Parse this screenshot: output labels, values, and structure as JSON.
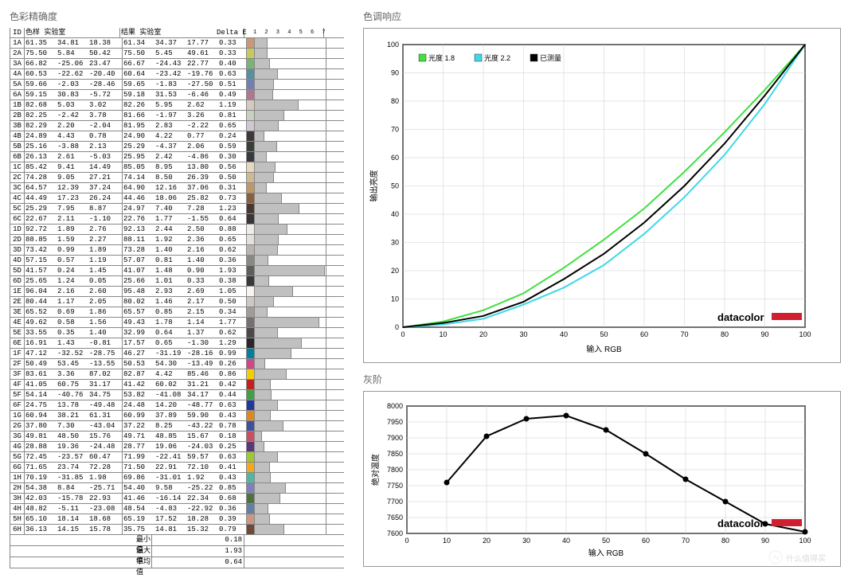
{
  "sections": {
    "accuracy": "色彩精确度",
    "tone": "色调响应",
    "gray": "灰阶"
  },
  "table": {
    "headers": {
      "id": "ID",
      "sample": "色样 实验室",
      "result": "结果 实验室",
      "delta": "Delta E",
      "bar": "1   2   3   4   5   6   7"
    },
    "summary": {
      "min_l": "最小值",
      "min_v": "0.18",
      "max_l": "最大值",
      "max_v": "1.93",
      "avg_l": "平均值",
      "avg_v": "0.64"
    },
    "rows": [
      {
        "id": "1A",
        "v": [
          61.35,
          34.81,
          18.38,
          61.34,
          34.37,
          17.77
        ],
        "de": 0.33,
        "sw": "#c89878"
      },
      {
        "id": "2A",
        "v": [
          75.5,
          5.84,
          50.42,
          75.5,
          5.45,
          49.61
        ],
        "de": 0.33,
        "sw": "#c8c860"
      },
      {
        "id": "3A",
        "v": [
          66.82,
          -25.06,
          23.47,
          66.67,
          -24.43,
          22.77
        ],
        "de": 0.4,
        "sw": "#78b478"
      },
      {
        "id": "4A",
        "v": [
          60.53,
          -22.62,
          -20.4,
          60.64,
          -23.42,
          -19.76
        ],
        "de": 0.63,
        "sw": "#5890a0"
      },
      {
        "id": "5A",
        "v": [
          59.66,
          -2.03,
          -28.46,
          59.65,
          -1.83,
          -27.5
        ],
        "de": 0.51,
        "sw": "#7080b0"
      },
      {
        "id": "6A",
        "v": [
          59.15,
          30.83,
          -5.72,
          59.18,
          31.53,
          -6.46
        ],
        "de": 0.49,
        "sw": "#b07890"
      },
      {
        "id": "1B",
        "v": [
          82.68,
          5.03,
          3.02,
          82.26,
          5.95,
          2.62
        ],
        "de": 1.19,
        "sw": "#d8c8c0"
      },
      {
        "id": "2B",
        "v": [
          82.25,
          -2.42,
          3.78,
          81.66,
          -1.97,
          3.26
        ],
        "de": 0.81,
        "sw": "#c8d0c0"
      },
      {
        "id": "3B",
        "v": [
          82.29,
          2.2,
          -2.04,
          81.95,
          2.83,
          -2.22
        ],
        "de": 0.65,
        "sw": "#d0c8d0"
      },
      {
        "id": "4B",
        "v": [
          24.89,
          4.43,
          0.78,
          24.9,
          4.22,
          0.77
        ],
        "de": 0.24,
        "sw": "#403838"
      },
      {
        "id": "5B",
        "v": [
          25.16,
          -3.88,
          2.13,
          25.29,
          -4.37,
          2.06
        ],
        "de": 0.59,
        "sw": "#384038"
      },
      {
        "id": "6B",
        "v": [
          26.13,
          2.61,
          -5.03,
          25.95,
          2.42,
          -4.86
        ],
        "de": 0.3,
        "sw": "#383840"
      },
      {
        "id": "1C",
        "v": [
          85.42,
          9.41,
          14.49,
          85.05,
          8.95,
          13.8
        ],
        "de": 0.56,
        "sw": "#e8d8c0"
      },
      {
        "id": "2C",
        "v": [
          74.28,
          9.05,
          27.21,
          74.14,
          8.5,
          26.39
        ],
        "de": 0.5,
        "sw": "#d0b890"
      },
      {
        "id": "3C",
        "v": [
          64.57,
          12.39,
          37.24,
          64.9,
          12.16,
          37.06
        ],
        "de": 0.31,
        "sw": "#c09868"
      },
      {
        "id": "4C",
        "v": [
          44.49,
          17.23,
          26.24,
          44.46,
          18.06,
          25.82
        ],
        "de": 0.73,
        "sw": "#886040"
      },
      {
        "id": "5C",
        "v": [
          25.29,
          7.95,
          8.87,
          24.97,
          7.4,
          7.28
        ],
        "de": 1.23,
        "sw": "#483830"
      },
      {
        "id": "6C",
        "v": [
          22.67,
          2.11,
          -1.1,
          22.76,
          1.77,
          -1.55
        ],
        "de": 0.64,
        "sw": "#383438"
      },
      {
        "id": "1D",
        "v": [
          92.72,
          1.89,
          2.76,
          92.13,
          2.44,
          2.5
        ],
        "de": 0.88,
        "sw": "#f0ece8"
      },
      {
        "id": "2D",
        "v": [
          88.85,
          1.59,
          2.27,
          88.11,
          1.92,
          2.36
        ],
        "de": 0.65,
        "sw": "#e4e0dc"
      },
      {
        "id": "3D",
        "v": [
          73.42,
          0.99,
          1.89,
          73.28,
          1.4,
          2.16
        ],
        "de": 0.62,
        "sw": "#b8b4b0"
      },
      {
        "id": "4D",
        "v": [
          57.15,
          0.57,
          1.19,
          57.07,
          0.81,
          1.4
        ],
        "de": 0.36,
        "sw": "#888884"
      },
      {
        "id": "5D",
        "v": [
          41.57,
          0.24,
          1.45,
          41.07,
          1.48,
          0.9
        ],
        "de": 1.93,
        "sw": "#605c58"
      },
      {
        "id": "6D",
        "v": [
          25.65,
          1.24,
          0.05,
          25.66,
          1.01,
          0.33
        ],
        "de": 0.38,
        "sw": "#383838"
      },
      {
        "id": "1E",
        "v": [
          96.04,
          2.16,
          2.6,
          95.48,
          2.93,
          2.69
        ],
        "de": 1.05,
        "sw": "#f8f4f0"
      },
      {
        "id": "2E",
        "v": [
          80.44,
          1.17,
          2.05,
          80.02,
          1.46,
          2.17
        ],
        "de": 0.5,
        "sw": "#ccc8c4"
      },
      {
        "id": "3E",
        "v": [
          65.52,
          0.69,
          1.86,
          65.57,
          0.85,
          2.15
        ],
        "de": 0.34,
        "sw": "#a09c98"
      },
      {
        "id": "4E",
        "v": [
          49.62,
          0.58,
          1.56,
          49.43,
          1.78,
          1.14
        ],
        "de": 1.77,
        "sw": "#747070"
      },
      {
        "id": "5E",
        "v": [
          33.55,
          0.35,
          1.4,
          32.99,
          0.64,
          1.37
        ],
        "de": 0.62,
        "sw": "#4c4848"
      },
      {
        "id": "6E",
        "v": [
          16.91,
          1.43,
          -0.81,
          17.57,
          0.65,
          -1.3
        ],
        "de": 1.29,
        "sw": "#282828"
      },
      {
        "id": "1F",
        "v": [
          47.12,
          -32.52,
          -28.75,
          46.27,
          -31.19,
          -28.16
        ],
        "de": 0.99,
        "sw": "#0080a0"
      },
      {
        "id": "2F",
        "v": [
          50.49,
          53.45,
          -13.55,
          50.53,
          54.3,
          -13.49
        ],
        "de": 0.26,
        "sw": "#d04888"
      },
      {
        "id": "3F",
        "v": [
          83.61,
          3.36,
          87.02,
          82.87,
          4.42,
          85.46
        ],
        "de": 0.86,
        "sw": "#f0d000"
      },
      {
        "id": "4F",
        "v": [
          41.05,
          60.75,
          31.17,
          41.42,
          60.02,
          31.21
        ],
        "de": 0.42,
        "sw": "#c02020"
      },
      {
        "id": "5F",
        "v": [
          54.14,
          -40.76,
          34.75,
          53.82,
          -41.08,
          34.17
        ],
        "de": 0.44,
        "sw": "#40a048"
      },
      {
        "id": "6F",
        "v": [
          24.75,
          13.78,
          -49.48,
          24.48,
          14.2,
          -48.77
        ],
        "de": 0.63,
        "sw": "#2038a0"
      },
      {
        "id": "1G",
        "v": [
          60.94,
          38.21,
          61.31,
          60.99,
          37.89,
          59.9
        ],
        "de": 0.43,
        "sw": "#e08820"
      },
      {
        "id": "2G",
        "v": [
          37.8,
          7.3,
          -43.04,
          37.22,
          8.25,
          -43.22
        ],
        "de": 0.78,
        "sw": "#4050a0"
      },
      {
        "id": "3G",
        "v": [
          49.81,
          48.5,
          15.76,
          49.71,
          48.85,
          15.67
        ],
        "de": 0.18,
        "sw": "#c85060"
      },
      {
        "id": "4G",
        "v": [
          28.88,
          19.36,
          -24.48,
          28.77,
          19.06,
          -24.03
        ],
        "de": 0.25,
        "sw": "#583878"
      },
      {
        "id": "5G",
        "v": [
          72.45,
          -23.57,
          60.47,
          71.99,
          -22.41,
          59.57
        ],
        "de": 0.63,
        "sw": "#a0c830"
      },
      {
        "id": "6G",
        "v": [
          71.65,
          23.74,
          72.28,
          71.5,
          22.91,
          72.1
        ],
        "de": 0.41,
        "sw": "#f0a820"
      },
      {
        "id": "1H",
        "v": [
          70.19,
          -31.85,
          1.98,
          69.86,
          -31.01,
          1.92
        ],
        "de": 0.43,
        "sw": "#50b8a0"
      },
      {
        "id": "2H",
        "v": [
          54.38,
          8.84,
          -25.71,
          54.4,
          9.58,
          -25.22
        ],
        "de": 0.85,
        "sw": "#8080b8"
      },
      {
        "id": "3H",
        "v": [
          42.03,
          -15.78,
          22.93,
          41.46,
          -16.14,
          22.34
        ],
        "de": 0.68,
        "sw": "#507040"
      },
      {
        "id": "4H",
        "v": [
          48.82,
          -5.11,
          -23.08,
          48.54,
          -4.83,
          -22.92
        ],
        "de": 0.36,
        "sw": "#6080a8"
      },
      {
        "id": "5H",
        "v": [
          65.1,
          18.14,
          18.68,
          65.19,
          17.52,
          18.28
        ],
        "de": 0.39,
        "sw": "#c89880"
      },
      {
        "id": "6H",
        "v": [
          36.13,
          14.15,
          15.78,
          35.75,
          14.81,
          15.32
        ],
        "de": 0.79,
        "sw": "#704838"
      }
    ]
  },
  "tone_chart": {
    "xlabel": "输入 RGB",
    "ylabel": "输出亮度",
    "xlim": [
      0,
      100
    ],
    "ylim": [
      0,
      100
    ],
    "tick": 10,
    "legend": [
      {
        "name": "光度 1.8",
        "color": "#40e040"
      },
      {
        "name": "光度 2.2",
        "color": "#40d8e8"
      },
      {
        "name": "已测量",
        "color": "#000000"
      }
    ],
    "brand": "datacolor",
    "series": {
      "g18": {
        "color": "#40e040",
        "pts": [
          [
            0,
            0
          ],
          [
            10,
            2
          ],
          [
            20,
            6
          ],
          [
            30,
            12
          ],
          [
            40,
            21
          ],
          [
            50,
            31
          ],
          [
            60,
            42
          ],
          [
            70,
            55
          ],
          [
            80,
            69
          ],
          [
            90,
            84
          ],
          [
            100,
            100
          ]
        ]
      },
      "g22": {
        "color": "#40d8e8",
        "pts": [
          [
            0,
            0
          ],
          [
            10,
            1
          ],
          [
            20,
            3
          ],
          [
            30,
            8
          ],
          [
            40,
            14
          ],
          [
            50,
            22
          ],
          [
            60,
            33
          ],
          [
            70,
            46
          ],
          [
            80,
            61
          ],
          [
            90,
            79
          ],
          [
            100,
            100
          ]
        ]
      },
      "meas": {
        "color": "#000000",
        "pts": [
          [
            0,
            0
          ],
          [
            10,
            1.5
          ],
          [
            20,
            4
          ],
          [
            30,
            9
          ],
          [
            40,
            17
          ],
          [
            50,
            26
          ],
          [
            60,
            37
          ],
          [
            70,
            50
          ],
          [
            80,
            65
          ],
          [
            90,
            82
          ],
          [
            100,
            100
          ]
        ]
      }
    }
  },
  "gray_chart": {
    "xlabel": "输入 RGB",
    "ylabel": "绝对温度",
    "xlim": [
      0,
      100
    ],
    "ylim": [
      7600,
      8000
    ],
    "xtick": 10,
    "ytick": 50,
    "brand": "datacolor",
    "pts": [
      [
        10,
        7760
      ],
      [
        20,
        7905
      ],
      [
        30,
        7960
      ],
      [
        40,
        7970
      ],
      [
        50,
        7925
      ],
      [
        60,
        7850
      ],
      [
        70,
        7770
      ],
      [
        80,
        7700
      ],
      [
        90,
        7630
      ],
      [
        100,
        7605
      ]
    ],
    "color": "#000000"
  },
  "watermark": "什么值得买"
}
